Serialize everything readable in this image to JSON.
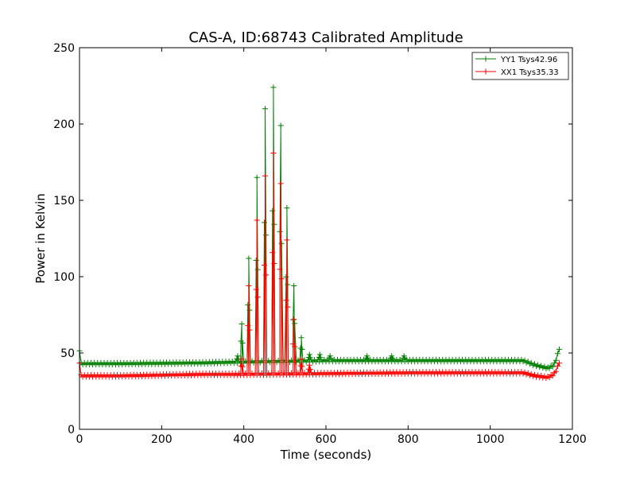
{
  "chart_data": {
    "type": "line",
    "title": "CAS-A, ID:68743 Calibrated Amplitude",
    "xlabel": "Time (seconds)",
    "ylabel": "Power in Kelvin",
    "xlim": [
      0,
      1200
    ],
    "ylim": [
      0,
      250
    ],
    "xticks": [
      0,
      200,
      400,
      600,
      800,
      1000,
      1200
    ],
    "yticks": [
      0,
      50,
      100,
      150,
      200,
      250
    ],
    "xtick_labels": [
      "0",
      "200",
      "400",
      "600",
      "800",
      "1000",
      "1200"
    ],
    "ytick_labels": [
      "0",
      "50",
      "100",
      "150",
      "200",
      "250"
    ],
    "grid": false,
    "legend_position": "top-right",
    "marker": "+",
    "series": [
      {
        "name": "YY1 Tsys42.96",
        "color": "#008000",
        "baseline": [
          [
            0,
            52
          ],
          [
            2,
            43
          ],
          [
            100,
            43
          ],
          [
            300,
            43.5
          ],
          [
            380,
            44
          ],
          [
            600,
            45
          ],
          [
            800,
            45
          ],
          [
            1000,
            45
          ],
          [
            1080,
            45
          ],
          [
            1110,
            42
          ],
          [
            1140,
            40
          ],
          [
            1155,
            42
          ],
          [
            1163,
            48
          ],
          [
            1168,
            53
          ]
        ],
        "peaks": [
          [
            385,
            48
          ],
          [
            395,
            69
          ],
          [
            412,
            112
          ],
          [
            432,
            165
          ],
          [
            452,
            210
          ],
          [
            472,
            224
          ],
          [
            490,
            199
          ],
          [
            505,
            145
          ],
          [
            522,
            94
          ],
          [
            540,
            60
          ],
          [
            560,
            49
          ],
          [
            585,
            49
          ],
          [
            610,
            48
          ],
          [
            700,
            48
          ],
          [
            760,
            48
          ],
          [
            790,
            48
          ]
        ]
      },
      {
        "name": "XX1 Tsys35.33",
        "color": "#ff0000",
        "baseline": [
          [
            0,
            44
          ],
          [
            2,
            35
          ],
          [
            100,
            35
          ],
          [
            300,
            36
          ],
          [
            380,
            36
          ],
          [
            600,
            36.5
          ],
          [
            800,
            37
          ],
          [
            1000,
            37
          ],
          [
            1080,
            37
          ],
          [
            1110,
            35
          ],
          [
            1140,
            34
          ],
          [
            1155,
            36
          ],
          [
            1163,
            40
          ],
          [
            1168,
            44
          ]
        ],
        "peaks": [
          [
            395,
            46
          ],
          [
            412,
            94
          ],
          [
            432,
            137
          ],
          [
            452,
            166
          ],
          [
            472,
            181
          ],
          [
            490,
            161
          ],
          [
            505,
            124
          ],
          [
            522,
            72
          ],
          [
            540,
            46
          ],
          [
            560,
            42
          ]
        ]
      }
    ]
  }
}
